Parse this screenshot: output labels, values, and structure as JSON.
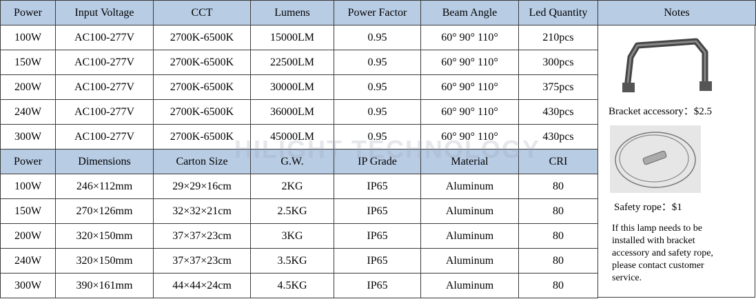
{
  "table1": {
    "headers": [
      "Power",
      "Input Voltage",
      "CCT",
      "Lumens",
      "Power Factor",
      "Beam Angle",
      "Led Quantity"
    ],
    "rows": [
      [
        "100W",
        "AC100-277V",
        "2700K-6500K",
        "15000LM",
        "0.95",
        "60° 90° 110°",
        "210pcs"
      ],
      [
        "150W",
        "AC100-277V",
        "2700K-6500K",
        "22500LM",
        "0.95",
        "60° 90° 110°",
        "300pcs"
      ],
      [
        "200W",
        "AC100-277V",
        "2700K-6500K",
        "30000LM",
        "0.95",
        "60° 90° 110°",
        "375pcs"
      ],
      [
        "240W",
        "AC100-277V",
        "2700K-6500K",
        "36000LM",
        "0.95",
        "60° 90° 110°",
        "430pcs"
      ],
      [
        "300W",
        "AC100-277V",
        "2700K-6500K",
        "45000LM",
        "0.95",
        "60° 90° 110°",
        "430pcs"
      ]
    ]
  },
  "table2": {
    "headers": [
      "Power",
      "Dimensions",
      "Carton Size",
      "G.W.",
      "IP Grade",
      "Material",
      "CRI"
    ],
    "rows": [
      [
        "100W",
        "246×112mm",
        "29×29×16cm",
        "2KG",
        "IP65",
        "Aluminum",
        "80"
      ],
      [
        "150W",
        "270×126mm",
        "32×32×21cm",
        "2.5KG",
        "IP65",
        "Aluminum",
        "80"
      ],
      [
        "200W",
        "320×150mm",
        "37×37×23cm",
        "3KG",
        "IP65",
        "Aluminum",
        "80"
      ],
      [
        "240W",
        "320×150mm",
        "37×37×23cm",
        "3.5KG",
        "IP65",
        "Aluminum",
        "80"
      ],
      [
        "300W",
        "390×161mm",
        "44×44×24cm",
        "4.5KG",
        "IP65",
        "Aluminum",
        "80"
      ]
    ]
  },
  "notes": {
    "header": "Notes",
    "bracket": "Bracket accessory：$2.5",
    "rope": "Safety rope：$1",
    "info": [
      "If this lamp needs to be",
      "installed with bracket",
      "accessory and safety rope,",
      "please contact customer",
      "service."
    ]
  },
  "watermark": "HILIGHT TECHNOLOGY"
}
